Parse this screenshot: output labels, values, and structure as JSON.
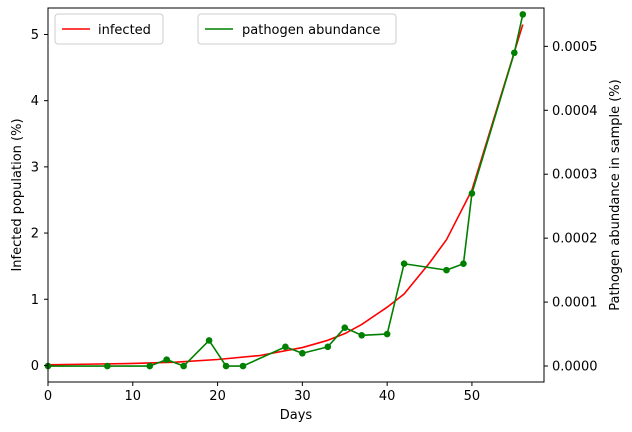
{
  "chart_data": {
    "type": "line",
    "xlabel": "Days",
    "ylabel_left": "Infected population (%)",
    "ylabel_right": "Pathogen abundance in sample (%)",
    "xlim": [
      0,
      58.5
    ],
    "ylim_left": [
      -0.25,
      5.4
    ],
    "ylim_right": [
      -2.5e-05,
      0.00056
    ],
    "x_ticks": [
      0,
      10,
      20,
      30,
      40,
      50
    ],
    "x_tick_labels": [
      "0",
      "10",
      "20",
      "30",
      "40",
      "50"
    ],
    "y_left_ticks": [
      0,
      1,
      2,
      3,
      4,
      5
    ],
    "y_left_tick_labels": [
      "0",
      "1",
      "2",
      "3",
      "4",
      "5"
    ],
    "y_right_ticks": [
      0,
      0.0001,
      0.0002,
      0.0003,
      0.0004,
      0.0005
    ],
    "y_right_tick_labels": [
      "0.0000",
      "0.0001",
      "0.0002",
      "0.0003",
      "0.0004",
      "0.0005"
    ],
    "series": [
      {
        "name": "infected",
        "axis": "left",
        "color": "#ff0000",
        "markers": false,
        "x": [
          0,
          5,
          10,
          15,
          20,
          25,
          30,
          33,
          35,
          37,
          40,
          42,
          45,
          47,
          50,
          53,
          56
        ],
        "y": [
          0.01,
          0.02,
          0.03,
          0.05,
          0.09,
          0.15,
          0.27,
          0.38,
          0.48,
          0.62,
          0.88,
          1.08,
          1.55,
          1.9,
          2.65,
          3.9,
          5.15
        ]
      },
      {
        "name": "pathogen abundance",
        "axis": "right",
        "color": "#008000",
        "markers": true,
        "x": [
          0,
          7,
          12,
          14,
          16,
          19,
          21,
          23,
          28,
          30,
          33,
          35,
          37,
          40,
          42,
          47,
          49,
          50,
          55,
          56
        ],
        "y": [
          0,
          0,
          0,
          1e-05,
          0,
          4e-05,
          0,
          0,
          3e-05,
          2e-05,
          3e-05,
          6e-05,
          4.8e-05,
          5e-05,
          0.00016,
          0.00015,
          0.00016,
          0.00027,
          0.00049,
          0.00055
        ]
      }
    ],
    "legends": [
      {
        "placement": "upper-left",
        "entries": [
          "infected"
        ]
      },
      {
        "placement": "upper-center",
        "entries": [
          "pathogen abundance"
        ]
      }
    ],
    "grid": false
  }
}
